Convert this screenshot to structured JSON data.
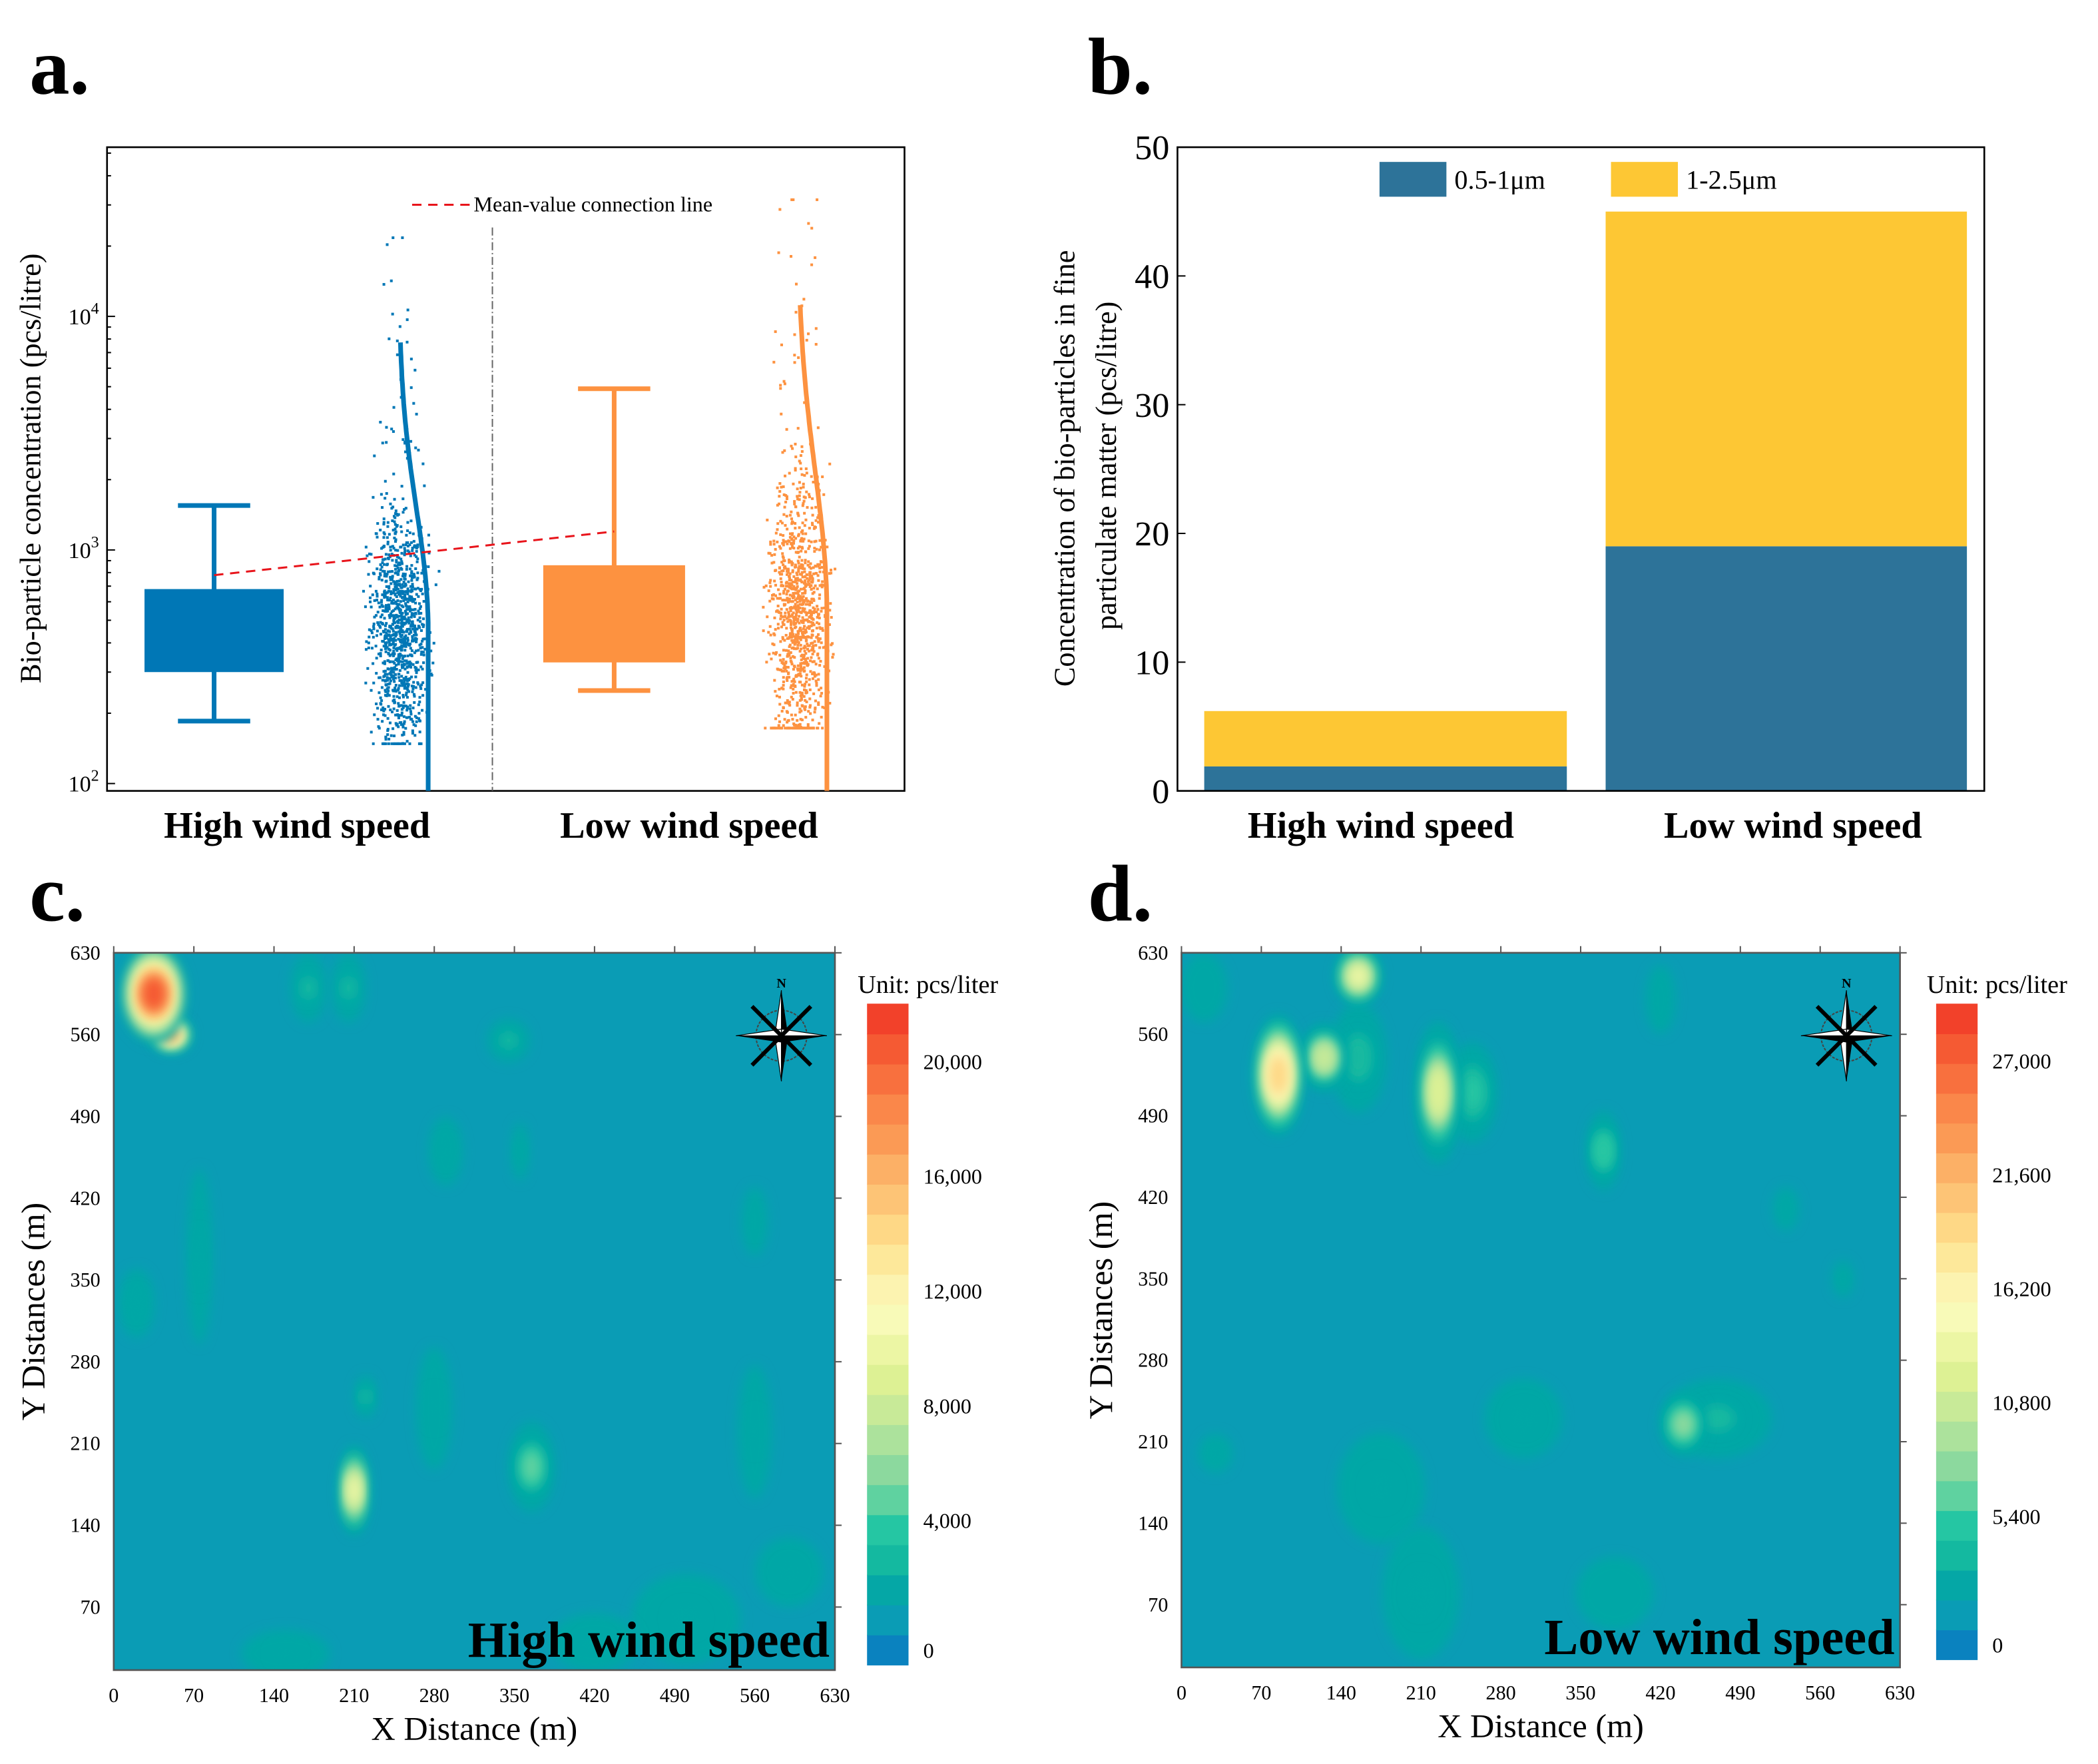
{
  "panel_labels": [
    "a.",
    "b.",
    "c.",
    "d."
  ],
  "chart_data": [
    {
      "type": "box",
      "panel": "a",
      "ylabel": "Bio-particle concentration (pcs/litre)",
      "yscale": "log",
      "ylim": [
        93,
        53000
      ],
      "yticks": [
        {
          "v": 100,
          "base": "10",
          "exp": "2"
        },
        {
          "v": 1000,
          "base": "10",
          "exp": "3"
        },
        {
          "v": 10000,
          "base": "10",
          "exp": "4"
        }
      ],
      "legend": "Mean-value connection line",
      "categories": [
        "High wind speed",
        "Low  wind speed"
      ],
      "colors": [
        "#0077b6",
        "#fd9240"
      ],
      "series": [
        {
          "name": "High wind speed",
          "whisker_low": 185,
          "q1": 300,
          "q3": 680,
          "whisker_high": 1550,
          "mean": 780,
          "points_min": 150,
          "points_max": 22000
        },
        {
          "name": "Low  wind speed",
          "whisker_low": 250,
          "q1": 330,
          "q3": 860,
          "whisker_high": 4900,
          "mean": 1200,
          "points_min": 175,
          "points_max": 32000
        }
      ]
    },
    {
      "type": "bar",
      "stacked": true,
      "panel": "b",
      "ylabel_line1": "Concentration of bio-particles in fine",
      "ylabel_line2": "particulate matter (pcs/litre)",
      "ylim": [
        0,
        50
      ],
      "yticks": [
        "0",
        "10",
        "20",
        "30",
        "40",
        "50"
      ],
      "categories": [
        "High wind speed",
        "Low  wind speed"
      ],
      "legend_position": "top",
      "series": [
        {
          "name": "0.5-1μm",
          "color": "#2d7399",
          "values": [
            1.9,
            19
          ]
        },
        {
          "name": "1-2.5μm",
          "color": "#fdc734",
          "values": [
            4.3,
            26
          ]
        }
      ]
    },
    {
      "type": "heatmap",
      "panel": "c",
      "title": "High wind speed",
      "xlabel": "X Distance (m)",
      "ylabel": "Y Distances (m)",
      "xticks": [
        "0",
        "70",
        "140",
        "210",
        "280",
        "350",
        "420",
        "490",
        "560",
        "630"
      ],
      "yticks": [
        "70",
        "140",
        "210",
        "280",
        "350",
        "420",
        "490",
        "560",
        "630"
      ],
      "colorbar_title": "Unit:  pcs/liter",
      "colorbar_ticks": [
        "0",
        "4,000",
        "8,000",
        "12,000",
        "16,000",
        "20,000"
      ],
      "vmax": 22000,
      "compass": "N",
      "hotspots": [
        {
          "x": 35,
          "y": 595,
          "rx": 30,
          "ry": 45,
          "v": 20000
        },
        {
          "x": 50,
          "y": 560,
          "rx": 18,
          "ry": 15,
          "v": 16000
        },
        {
          "x": 210,
          "y": 170,
          "rx": 12,
          "ry": 40,
          "v": 10500
        },
        {
          "x": 365,
          "y": 190,
          "rx": 20,
          "ry": 40,
          "v": 5500
        },
        {
          "x": 170,
          "y": 600,
          "rx": 15,
          "ry": 30,
          "v": 3000
        },
        {
          "x": 205,
          "y": 600,
          "rx": 14,
          "ry": 30,
          "v": 3000
        },
        {
          "x": 345,
          "y": 555,
          "rx": 18,
          "ry": 18,
          "v": 3000
        },
        {
          "x": 290,
          "y": 460,
          "rx": 14,
          "ry": 30,
          "v": 2800
        },
        {
          "x": 355,
          "y": 460,
          "rx": 6,
          "ry": 25,
          "v": 2800
        },
        {
          "x": 75,
          "y": 370,
          "rx": 10,
          "ry": 80,
          "v": 2600
        },
        {
          "x": 20,
          "y": 330,
          "rx": 15,
          "ry": 30,
          "v": 2600
        },
        {
          "x": 280,
          "y": 240,
          "rx": 15,
          "ry": 55,
          "v": 2500
        },
        {
          "x": 560,
          "y": 220,
          "rx": 14,
          "ry": 60,
          "v": 2500
        },
        {
          "x": 560,
          "y": 400,
          "rx": 10,
          "ry": 30,
          "v": 2500
        },
        {
          "x": 220,
          "y": 250,
          "rx": 8,
          "ry": 18,
          "v": 3500
        },
        {
          "x": 500,
          "y": 60,
          "rx": 50,
          "ry": 40,
          "v": 2400
        },
        {
          "x": 420,
          "y": 40,
          "rx": 40,
          "ry": 25,
          "v": 2400
        },
        {
          "x": 590,
          "y": 100,
          "rx": 30,
          "ry": 30,
          "v": 2400
        },
        {
          "x": 150,
          "y": 30,
          "rx": 40,
          "ry": 20,
          "v": 2200
        }
      ]
    },
    {
      "type": "heatmap",
      "panel": "d",
      "title": "Low wind speed",
      "xlabel": "X Distance (m)",
      "ylabel": "Y Distances (m)",
      "xticks": [
        "0",
        "70",
        "140",
        "210",
        "280",
        "350",
        "420",
        "490",
        "560",
        "630"
      ],
      "yticks": [
        "70",
        "140",
        "210",
        "280",
        "350",
        "420",
        "490",
        "560",
        "630"
      ],
      "colorbar_title": "Unit:  pcs/liter",
      "colorbar_ticks": [
        "0",
        "5,400",
        "10,800",
        "16,200",
        "21,600",
        "27,000"
      ],
      "vmax": 29700,
      "compass": "N",
      "hotspots": [
        {
          "x": 85,
          "y": 525,
          "rx": 22,
          "ry": 55,
          "v": 20000
        },
        {
          "x": 125,
          "y": 540,
          "rx": 20,
          "ry": 30,
          "v": 12000
        },
        {
          "x": 155,
          "y": 610,
          "rx": 20,
          "ry": 25,
          "v": 14000
        },
        {
          "x": 225,
          "y": 510,
          "rx": 20,
          "ry": 65,
          "v": 13000
        },
        {
          "x": 255,
          "y": 510,
          "rx": 22,
          "ry": 45,
          "v": 6000
        },
        {
          "x": 155,
          "y": 540,
          "rx": 25,
          "ry": 50,
          "v": 5000
        },
        {
          "x": 370,
          "y": 460,
          "rx": 14,
          "ry": 35,
          "v": 6500
        },
        {
          "x": 440,
          "y": 225,
          "rx": 20,
          "ry": 28,
          "v": 9000
        },
        {
          "x": 470,
          "y": 230,
          "rx": 50,
          "ry": 35,
          "v": 4500
        },
        {
          "x": 300,
          "y": 230,
          "rx": 35,
          "ry": 35,
          "v": 3500
        },
        {
          "x": 210,
          "y": 80,
          "rx": 35,
          "ry": 60,
          "v": 3500
        },
        {
          "x": 175,
          "y": 170,
          "rx": 40,
          "ry": 50,
          "v": 3000
        },
        {
          "x": 380,
          "y": 80,
          "rx": 35,
          "ry": 32,
          "v": 2800
        },
        {
          "x": 30,
          "y": 200,
          "rx": 14,
          "ry": 16,
          "v": 3500
        },
        {
          "x": 530,
          "y": 410,
          "rx": 10,
          "ry": 18,
          "v": 3000
        },
        {
          "x": 420,
          "y": 590,
          "rx": 12,
          "ry": 30,
          "v": 2800
        },
        {
          "x": 20,
          "y": 600,
          "rx": 20,
          "ry": 30,
          "v": 2500
        },
        {
          "x": 580,
          "y": 350,
          "rx": 8,
          "ry": 15,
          "v": 3000
        }
      ]
    }
  ]
}
